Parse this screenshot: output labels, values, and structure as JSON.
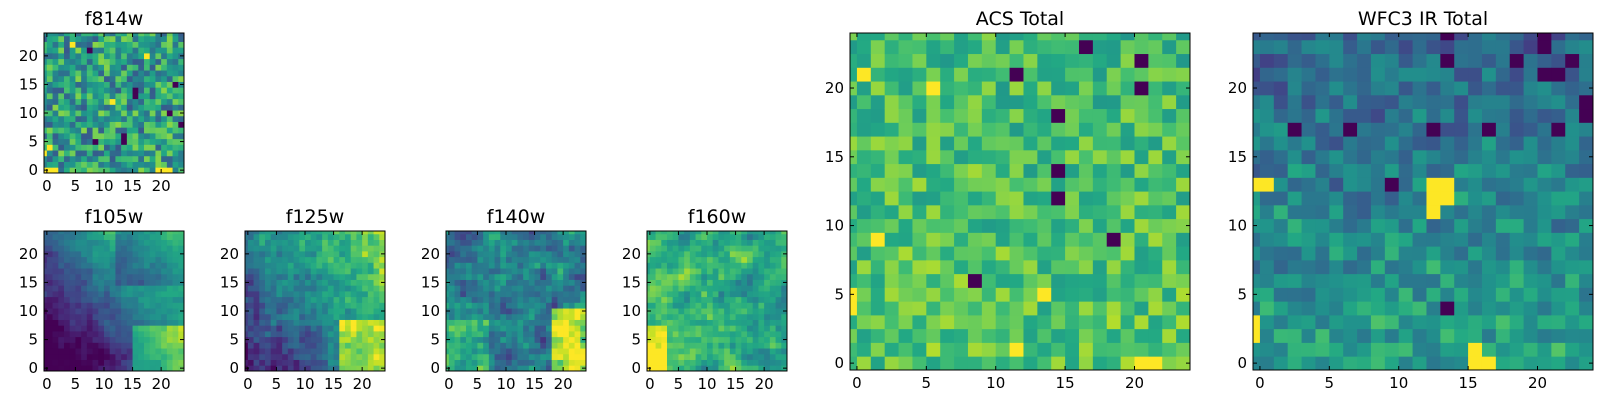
{
  "figure_caption": "",
  "chart_data": [
    {
      "type": "heatmap",
      "title": "f814w",
      "grid": [
        25,
        25
      ],
      "seed": 11,
      "pattern": "noise",
      "xticks": [
        0,
        5,
        10,
        15,
        20
      ],
      "yticks": [
        0,
        5,
        10,
        15,
        20
      ],
      "dark_cells": [
        [
          14,
          5
        ],
        [
          23,
          15
        ],
        [
          16,
          14
        ],
        [
          16,
          13
        ],
        [
          22,
          10
        ],
        [
          9,
          5
        ],
        [
          14,
          6
        ],
        [
          24,
          8
        ],
        [
          8,
          21
        ]
      ],
      "bright_cells": [
        [
          0,
          0
        ],
        [
          1,
          0
        ],
        [
          2,
          0
        ],
        [
          20,
          0
        ],
        [
          21,
          0
        ],
        [
          22,
          0
        ],
        [
          0,
          3
        ],
        [
          1,
          4
        ],
        [
          12,
          12
        ],
        [
          5,
          22
        ],
        [
          18,
          20
        ]
      ]
    },
    {
      "type": "heatmap",
      "title": "f105w",
      "grid": [
        25,
        25
      ],
      "seed": 23,
      "pattern": "gradient_corner",
      "xticks": [
        0,
        5,
        10,
        15,
        20
      ],
      "yticks": [
        0,
        5,
        10,
        15,
        20
      ]
    },
    {
      "type": "heatmap",
      "title": "f125w",
      "grid": [
        25,
        25
      ],
      "seed": 37,
      "pattern": "gradient_corner_noisy",
      "xticks": [
        0,
        5,
        10,
        15,
        20
      ],
      "yticks": [
        0,
        5,
        10,
        15,
        20
      ]
    },
    {
      "type": "heatmap",
      "title": "f140w",
      "grid": [
        25,
        25
      ],
      "seed": 41,
      "pattern": "two_lobes",
      "xticks": [
        0,
        5,
        10,
        15,
        20
      ],
      "yticks": [
        0,
        5,
        10,
        15,
        20
      ]
    },
    {
      "type": "heatmap",
      "title": "f160w",
      "grid": [
        25,
        25
      ],
      "seed": 53,
      "pattern": "left_bright",
      "xticks": [
        0,
        5,
        10,
        15,
        20
      ],
      "yticks": [
        0,
        5,
        10,
        15,
        20
      ]
    },
    {
      "type": "heatmap",
      "title": "ACS Total",
      "grid": [
        25,
        25
      ],
      "seed": 67,
      "pattern": "noise_bright",
      "xticks": [
        0,
        5,
        10,
        15,
        20
      ],
      "yticks": [
        0,
        5,
        10,
        15,
        20
      ],
      "dark_cells": [
        [
          17,
          23
        ],
        [
          21,
          22
        ],
        [
          21,
          20
        ],
        [
          12,
          21
        ],
        [
          15,
          18
        ],
        [
          15,
          14
        ],
        [
          15,
          12
        ],
        [
          19,
          9
        ],
        [
          9,
          6
        ]
      ],
      "bright_cells": [
        [
          1,
          21
        ],
        [
          6,
          20
        ],
        [
          2,
          9
        ],
        [
          14,
          5
        ],
        [
          21,
          0
        ],
        [
          22,
          0
        ],
        [
          12,
          1
        ],
        [
          0,
          5
        ],
        [
          0,
          4
        ]
      ]
    },
    {
      "type": "heatmap",
      "title": "WFC3 IR Total",
      "grid": [
        25,
        25
      ],
      "seed": 79,
      "pattern": "ir_total",
      "xticks": [
        0,
        5,
        10,
        15,
        20
      ],
      "yticks": [
        0,
        5,
        10,
        15,
        20
      ],
      "dark_cells": [
        [
          21,
          24
        ],
        [
          21,
          23
        ],
        [
          14,
          24
        ],
        [
          19,
          22
        ],
        [
          21,
          21
        ],
        [
          22,
          21
        ],
        [
          23,
          22
        ],
        [
          14,
          22
        ],
        [
          13,
          17
        ],
        [
          17,
          17
        ],
        [
          22,
          17
        ],
        [
          10,
          13
        ],
        [
          3,
          17
        ],
        [
          7,
          17
        ],
        [
          14,
          4
        ],
        [
          24,
          18
        ],
        [
          24,
          19
        ]
      ],
      "bright_cells": [
        [
          0,
          13
        ],
        [
          1,
          13
        ],
        [
          13,
          13
        ],
        [
          14,
          13
        ],
        [
          13,
          12
        ],
        [
          14,
          12
        ],
        [
          13,
          11
        ],
        [
          16,
          0
        ],
        [
          17,
          0
        ],
        [
          16,
          1
        ],
        [
          0,
          2
        ],
        [
          0,
          3
        ]
      ]
    }
  ]
}
